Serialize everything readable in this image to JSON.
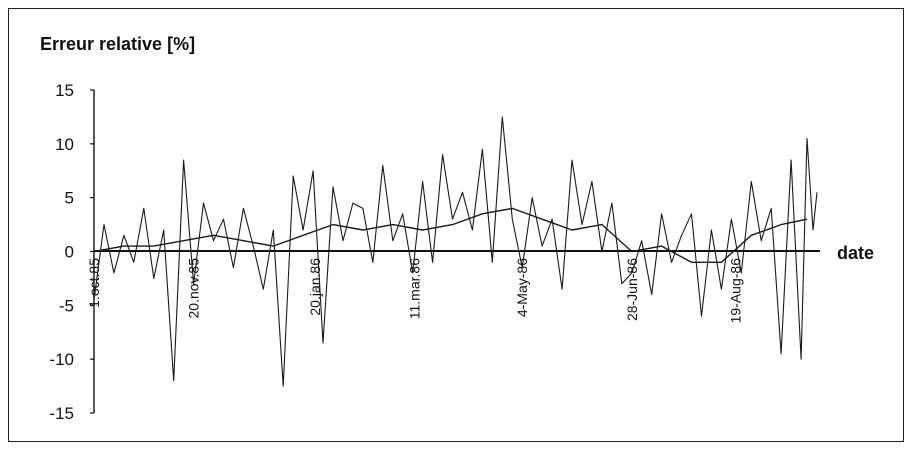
{
  "chart_data": {
    "type": "line",
    "ylabel": "Erreur relative [%]",
    "xlabel": "date",
    "ylim": [
      -15,
      15
    ],
    "yticks": [
      15,
      10,
      5,
      0,
      -5,
      -10,
      -15
    ],
    "xtick_labels": [
      {
        "label": "1.oct.85",
        "x": "1985-10-01"
      },
      {
        "label": "20.nov.85",
        "x": "1985-11-20"
      },
      {
        "label": "20.jan.86",
        "x": "1986-01-20"
      },
      {
        "label": "11.mar.86",
        "x": "1986-03-11"
      },
      {
        "label": "4-May-86",
        "x": "1986-05-04"
      },
      {
        "label": "28-Jun-86",
        "x": "1986-06-28"
      },
      {
        "label": "19-Aug-86",
        "x": "1986-08-19"
      }
    ],
    "xlim": [
      "1985-10-01",
      "1986-09-29"
    ],
    "grid": false,
    "series": [
      {
        "color": "#1a1a1a",
        "points": [
          [
            "1985-10-01",
            -4.5
          ],
          [
            "1985-10-06",
            2.5
          ],
          [
            "1985-10-11",
            -2.0
          ],
          [
            "1985-10-16",
            1.5
          ],
          [
            "1985-10-21",
            -1.0
          ],
          [
            "1985-10-26",
            4.0
          ],
          [
            "1985-10-31",
            -2.5
          ],
          [
            "1985-11-05",
            2.0
          ],
          [
            "1985-11-10",
            -12.0
          ],
          [
            "1985-11-15",
            8.5
          ],
          [
            "1985-11-20",
            -3.0
          ],
          [
            "1985-11-25",
            4.5
          ],
          [
            "1985-11-30",
            1.0
          ],
          [
            "1985-12-05",
            3.0
          ],
          [
            "1985-12-10",
            -1.5
          ],
          [
            "1985-12-15",
            4.0
          ],
          [
            "1985-12-20",
            0.5
          ],
          [
            "1985-12-25",
            -3.5
          ],
          [
            "1985-12-30",
            2.0
          ],
          [
            "1986-01-04",
            -12.5
          ],
          [
            "1986-01-09",
            7.0
          ],
          [
            "1986-01-14",
            2.0
          ],
          [
            "1986-01-19",
            7.5
          ],
          [
            "1986-01-24",
            -8.5
          ],
          [
            "1986-01-29",
            6.0
          ],
          [
            "1986-02-03",
            1.0
          ],
          [
            "1986-02-08",
            4.5
          ],
          [
            "1986-02-13",
            4.0
          ],
          [
            "1986-02-18",
            -1.0
          ],
          [
            "1986-02-23",
            8.0
          ],
          [
            "1986-02-28",
            1.0
          ],
          [
            "1986-03-05",
            3.5
          ],
          [
            "1986-03-10",
            -2.0
          ],
          [
            "1986-03-15",
            6.5
          ],
          [
            "1986-03-20",
            -1.0
          ],
          [
            "1986-03-25",
            9.0
          ],
          [
            "1986-03-30",
            3.0
          ],
          [
            "1986-04-04",
            5.5
          ],
          [
            "1986-04-09",
            2.0
          ],
          [
            "1986-04-14",
            9.5
          ],
          [
            "1986-04-19",
            -1.0
          ],
          [
            "1986-04-24",
            12.5
          ],
          [
            "1986-04-29",
            3.0
          ],
          [
            "1986-05-04",
            -1.5
          ],
          [
            "1986-05-09",
            5.0
          ],
          [
            "1986-05-14",
            0.5
          ],
          [
            "1986-05-19",
            3.0
          ],
          [
            "1986-05-24",
            -3.5
          ],
          [
            "1986-05-29",
            8.5
          ],
          [
            "1986-06-03",
            2.5
          ],
          [
            "1986-06-08",
            6.5
          ],
          [
            "1986-06-13",
            0.0
          ],
          [
            "1986-06-18",
            4.5
          ],
          [
            "1986-06-23",
            -3.0
          ],
          [
            "1986-06-28",
            -2.0
          ],
          [
            "1986-07-03",
            1.0
          ],
          [
            "1986-07-08",
            -4.0
          ],
          [
            "1986-07-13",
            3.5
          ],
          [
            "1986-07-18",
            -1.0
          ],
          [
            "1986-07-23",
            1.5
          ],
          [
            "1986-07-28",
            3.5
          ],
          [
            "1986-08-02",
            -6.0
          ],
          [
            "1986-08-07",
            2.0
          ],
          [
            "1986-08-12",
            -3.5
          ],
          [
            "1986-08-17",
            3.0
          ],
          [
            "1986-08-22",
            -2.0
          ],
          [
            "1986-08-27",
            6.5
          ],
          [
            "1986-09-01",
            1.0
          ],
          [
            "1986-09-06",
            4.0
          ],
          [
            "1986-09-11",
            -9.5
          ],
          [
            "1986-09-16",
            8.5
          ],
          [
            "1986-09-21",
            -10.0
          ],
          [
            "1986-09-24",
            10.5
          ],
          [
            "1986-09-27",
            2.0
          ],
          [
            "1986-09-29",
            5.5
          ]
        ]
      },
      {
        "color": "#1a1a1a",
        "points": [
          [
            "1985-10-01",
            0.0
          ],
          [
            "1985-10-16",
            0.5
          ],
          [
            "1985-10-31",
            0.5
          ],
          [
            "1985-11-15",
            1.0
          ],
          [
            "1985-11-30",
            1.5
          ],
          [
            "1985-12-15",
            1.0
          ],
          [
            "1985-12-30",
            0.5
          ],
          [
            "1986-01-14",
            1.5
          ],
          [
            "1986-01-29",
            2.5
          ],
          [
            "1986-02-13",
            2.0
          ],
          [
            "1986-02-28",
            2.5
          ],
          [
            "1986-03-15",
            2.0
          ],
          [
            "1986-03-30",
            2.5
          ],
          [
            "1986-04-14",
            3.5
          ],
          [
            "1986-04-29",
            4.0
          ],
          [
            "1986-05-14",
            3.0
          ],
          [
            "1986-05-29",
            2.0
          ],
          [
            "1986-06-13",
            2.5
          ],
          [
            "1986-06-28",
            0.0
          ],
          [
            "1986-07-13",
            0.5
          ],
          [
            "1986-07-28",
            -1.0
          ],
          [
            "1986-08-12",
            -1.0
          ],
          [
            "1986-08-27",
            1.5
          ],
          [
            "1986-09-11",
            2.5
          ],
          [
            "1986-09-24",
            3.0
          ]
        ]
      }
    ]
  }
}
